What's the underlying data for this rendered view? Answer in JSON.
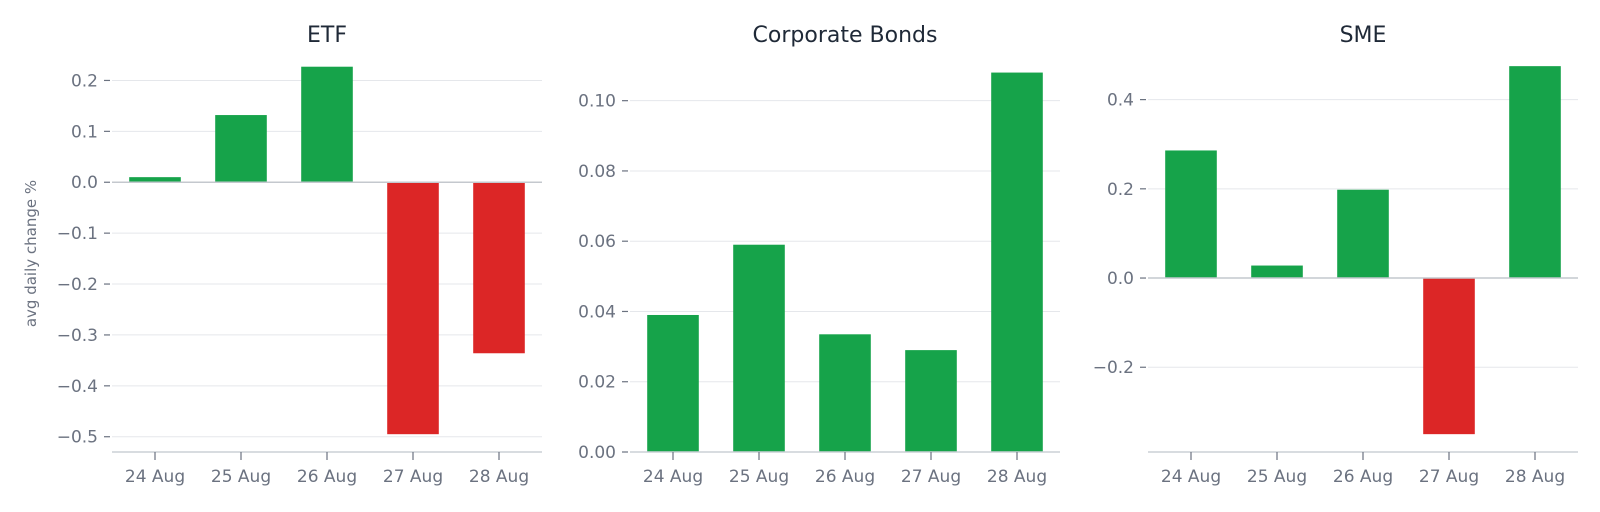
{
  "colors": {
    "positive": "#16a34a",
    "negative": "#dc2626",
    "grid": "#e5e7eb",
    "axis": "#c4c8ce",
    "text": "#6b7280",
    "title": "#1f2937"
  },
  "chart_data": [
    {
      "type": "bar",
      "title": "ETF",
      "ylabel": "avg daily change %",
      "categories": [
        "24 Aug",
        "25 Aug",
        "26 Aug",
        "27 Aug",
        "28 Aug"
      ],
      "values": [
        0.01,
        0.132,
        0.227,
        -0.495,
        -0.336
      ],
      "yticks": [
        0.2,
        0.1,
        0.0,
        -0.1,
        -0.2,
        -0.3,
        -0.4,
        -0.5
      ],
      "ytick_labels": [
        "0.2",
        "0.1",
        "0.0",
        "−0.1",
        "−0.2",
        "−0.3",
        "−0.4",
        "−0.5"
      ],
      "ylim": [
        -0.53,
        0.25
      ],
      "grid": true
    },
    {
      "type": "bar",
      "title": "Corporate Bonds",
      "ylabel": "",
      "categories": [
        "24 Aug",
        "25 Aug",
        "26 Aug",
        "27 Aug",
        "28 Aug"
      ],
      "values": [
        0.039,
        0.059,
        0.0335,
        0.029,
        0.108
      ],
      "yticks": [
        0.0,
        0.02,
        0.04,
        0.06,
        0.08,
        0.1
      ],
      "ytick_labels": [
        "0.00",
        "0.02",
        "0.04",
        "0.06",
        "0.08",
        "0.10"
      ],
      "ylim": [
        0.0,
        0.113
      ],
      "grid": true
    },
    {
      "type": "bar",
      "title": "SME",
      "ylabel": "",
      "categories": [
        "24 Aug",
        "25 Aug",
        "26 Aug",
        "27 Aug",
        "28 Aug"
      ],
      "values": [
        0.286,
        0.028,
        0.198,
        -0.35,
        0.475
      ],
      "yticks": [
        0.4,
        0.2,
        0.0,
        -0.2
      ],
      "ytick_labels": [
        "0.4",
        "0.2",
        "0.0",
        "−0.2"
      ],
      "ylim": [
        -0.39,
        0.5
      ],
      "grid": true
    }
  ]
}
